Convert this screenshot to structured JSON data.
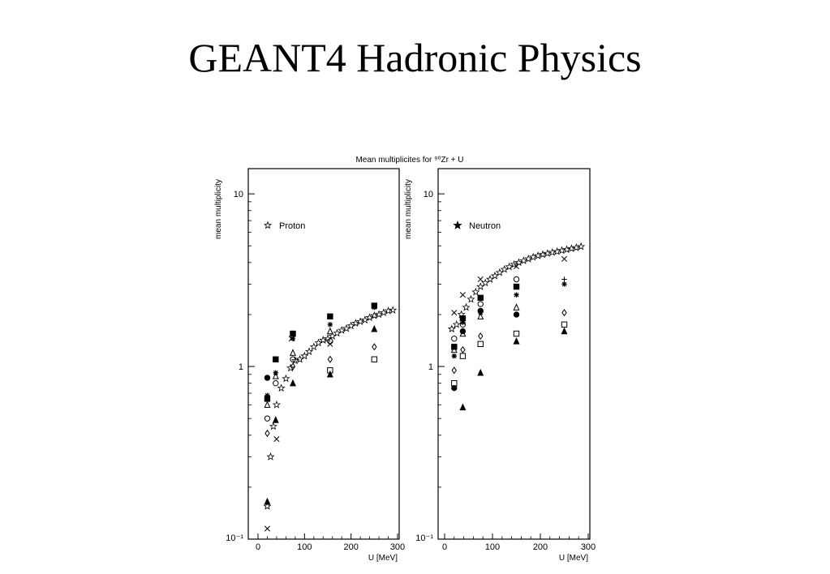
{
  "slide": {
    "title": "GEANT4 Hadronic Physics"
  },
  "figure": {
    "title": "Mean multiplicites for ⁹⁰Zr + U"
  },
  "chart_data": [
    {
      "type": "scatter",
      "panel": "left",
      "title": "Mean multiplicites for ⁹⁰Zr + U",
      "xlabel": "U [MeV]",
      "ylabel": "mean multiplicity",
      "legend_label": "Proton",
      "legend_symbol": "open-star",
      "x_ticks": [
        "0",
        "100",
        "200",
        "300"
      ],
      "y_ticks": [
        "10",
        "1",
        "10⁻¹"
      ],
      "xlim": [
        0,
        300
      ],
      "ylim": [
        0.1,
        14
      ],
      "yscale": "log",
      "grid": false,
      "series": [
        {
          "symbol": "open-star",
          "points": [
            [
              20,
              0.155
            ],
            [
              27,
              0.3
            ],
            [
              33,
              0.45
            ],
            [
              40,
              0.6
            ],
            [
              50,
              0.75
            ],
            [
              60,
              0.85
            ],
            [
              70,
              0.98
            ],
            [
              80,
              1.08
            ],
            [
              90,
              1.1
            ],
            [
              100,
              1.15
            ],
            [
              110,
              1.22
            ],
            [
              120,
              1.3
            ],
            [
              130,
              1.37
            ],
            [
              140,
              1.42
            ],
            [
              150,
              1.45
            ],
            [
              160,
              1.5
            ],
            [
              170,
              1.56
            ],
            [
              180,
              1.62
            ],
            [
              190,
              1.66
            ],
            [
              200,
              1.72
            ],
            [
              210,
              1.78
            ],
            [
              220,
              1.82
            ],
            [
              230,
              1.86
            ],
            [
              240,
              1.92
            ],
            [
              250,
              1.97
            ],
            [
              260,
              2.0
            ],
            [
              270,
              2.05
            ],
            [
              280,
              2.1
            ],
            [
              290,
              2.12
            ]
          ]
        },
        {
          "symbol": "x",
          "points": [
            [
              20,
              0.115
            ],
            [
              40,
              0.38
            ],
            [
              72,
              1.45
            ],
            [
              155,
              1.35
            ]
          ]
        },
        {
          "symbol": "filled-circle",
          "points": [
            [
              20,
              0.86
            ]
          ]
        },
        {
          "symbol": "filled-square",
          "points": [
            [
              20,
              0.65
            ],
            [
              38,
              1.1
            ],
            [
              75,
              1.55
            ],
            [
              155,
              1.95
            ],
            [
              250,
              2.25
            ]
          ]
        },
        {
          "symbol": "open-triangle",
          "points": [
            [
              20,
              0.6
            ],
            [
              38,
              0.88
            ],
            [
              75,
              1.2
            ],
            [
              155,
              1.6
            ]
          ]
        },
        {
          "symbol": "open-circle",
          "points": [
            [
              20,
              0.5
            ],
            [
              38,
              0.8
            ],
            [
              75,
              1.1
            ],
            [
              155,
              1.4
            ]
          ]
        },
        {
          "symbol": "open-diamond",
          "points": [
            [
              20,
              0.41
            ],
            [
              75,
              1.0
            ],
            [
              155,
              1.1
            ],
            [
              250,
              1.3
            ]
          ]
        },
        {
          "symbol": "filled-triangle",
          "points": [
            [
              20,
              0.165
            ],
            [
              38,
              0.49
            ],
            [
              75,
              0.8
            ],
            [
              155,
              0.9
            ],
            [
              250,
              1.65
            ]
          ]
        },
        {
          "symbol": "asterisk",
          "points": [
            [
              20,
              0.68
            ],
            [
              38,
              0.92
            ],
            [
              75,
              1.45
            ],
            [
              155,
              1.75
            ],
            [
              250,
              2.2
            ]
          ]
        },
        {
          "symbol": "open-square",
          "points": [
            [
              155,
              0.95
            ],
            [
              250,
              1.1
            ]
          ]
        }
      ]
    },
    {
      "type": "scatter",
      "panel": "right",
      "xlabel": "U [MeV]",
      "ylabel": "mean multiplicity",
      "legend_label": "Neutron",
      "legend_symbol": "filled-star",
      "x_ticks": [
        "0",
        "100",
        "200",
        "300"
      ],
      "y_ticks": [
        "10",
        "1",
        "10⁻¹"
      ],
      "xlim": [
        0,
        300
      ],
      "ylim": [
        0.1,
        14
      ],
      "yscale": "log",
      "grid": false,
      "series": [
        {
          "symbol": "open-star",
          "points": [
            [
              15,
              1.65
            ],
            [
              25,
              1.75
            ],
            [
              35,
              2.0
            ],
            [
              45,
              2.2
            ],
            [
              55,
              2.45
            ],
            [
              65,
              2.7
            ],
            [
              75,
              2.9
            ],
            [
              85,
              3.05
            ],
            [
              95,
              3.2
            ],
            [
              105,
              3.35
            ],
            [
              115,
              3.5
            ],
            [
              125,
              3.65
            ],
            [
              135,
              3.78
            ],
            [
              145,
              3.9
            ],
            [
              155,
              4.0
            ],
            [
              165,
              4.1
            ],
            [
              175,
              4.2
            ],
            [
              185,
              4.3
            ],
            [
              195,
              4.38
            ],
            [
              205,
              4.45
            ],
            [
              215,
              4.52
            ],
            [
              225,
              4.58
            ],
            [
              235,
              4.63
            ],
            [
              245,
              4.7
            ],
            [
              255,
              4.76
            ],
            [
              265,
              4.82
            ],
            [
              275,
              4.88
            ],
            [
              285,
              4.95
            ]
          ]
        },
        {
          "symbol": "x",
          "points": [
            [
              20,
              2.05
            ],
            [
              38,
              2.6
            ],
            [
              75,
              3.2
            ],
            [
              150,
              3.8
            ],
            [
              250,
              4.2
            ]
          ]
        },
        {
          "symbol": "filled-square",
          "points": [
            [
              20,
              1.3
            ],
            [
              38,
              1.9
            ],
            [
              75,
              2.5
            ],
            [
              150,
              2.9
            ]
          ]
        },
        {
          "symbol": "open-circle",
          "points": [
            [
              20,
              1.45
            ],
            [
              38,
              1.75
            ],
            [
              75,
              2.3
            ],
            [
              150,
              3.2
            ]
          ]
        },
        {
          "symbol": "filled-circle",
          "points": [
            [
              20,
              0.75
            ],
            [
              38,
              1.6
            ],
            [
              75,
              2.1
            ],
            [
              150,
              2.0
            ]
          ]
        },
        {
          "symbol": "open-triangle",
          "points": [
            [
              20,
              1.25
            ],
            [
              38,
              1.55
            ],
            [
              75,
              1.95
            ],
            [
              150,
              2.2
            ]
          ]
        },
        {
          "symbol": "asterisk",
          "points": [
            [
              20,
              1.15
            ],
            [
              38,
              1.8
            ],
            [
              75,
              2.05
            ],
            [
              150,
              2.6
            ],
            [
              250,
              3.0
            ]
          ]
        },
        {
          "symbol": "plus",
          "points": [
            [
              250,
              3.2
            ]
          ]
        },
        {
          "symbol": "open-diamond",
          "points": [
            [
              20,
              0.95
            ],
            [
              38,
              1.25
            ],
            [
              75,
              1.5
            ],
            [
              250,
              2.05
            ]
          ]
        },
        {
          "symbol": "open-square",
          "points": [
            [
              20,
              0.8
            ],
            [
              38,
              1.15
            ],
            [
              75,
              1.35
            ],
            [
              150,
              1.55
            ],
            [
              250,
              1.75
            ]
          ]
        },
        {
          "symbol": "filled-triangle",
          "points": [
            [
              38,
              0.58
            ],
            [
              75,
              0.92
            ],
            [
              150,
              1.4
            ],
            [
              250,
              1.6
            ]
          ]
        }
      ]
    }
  ]
}
